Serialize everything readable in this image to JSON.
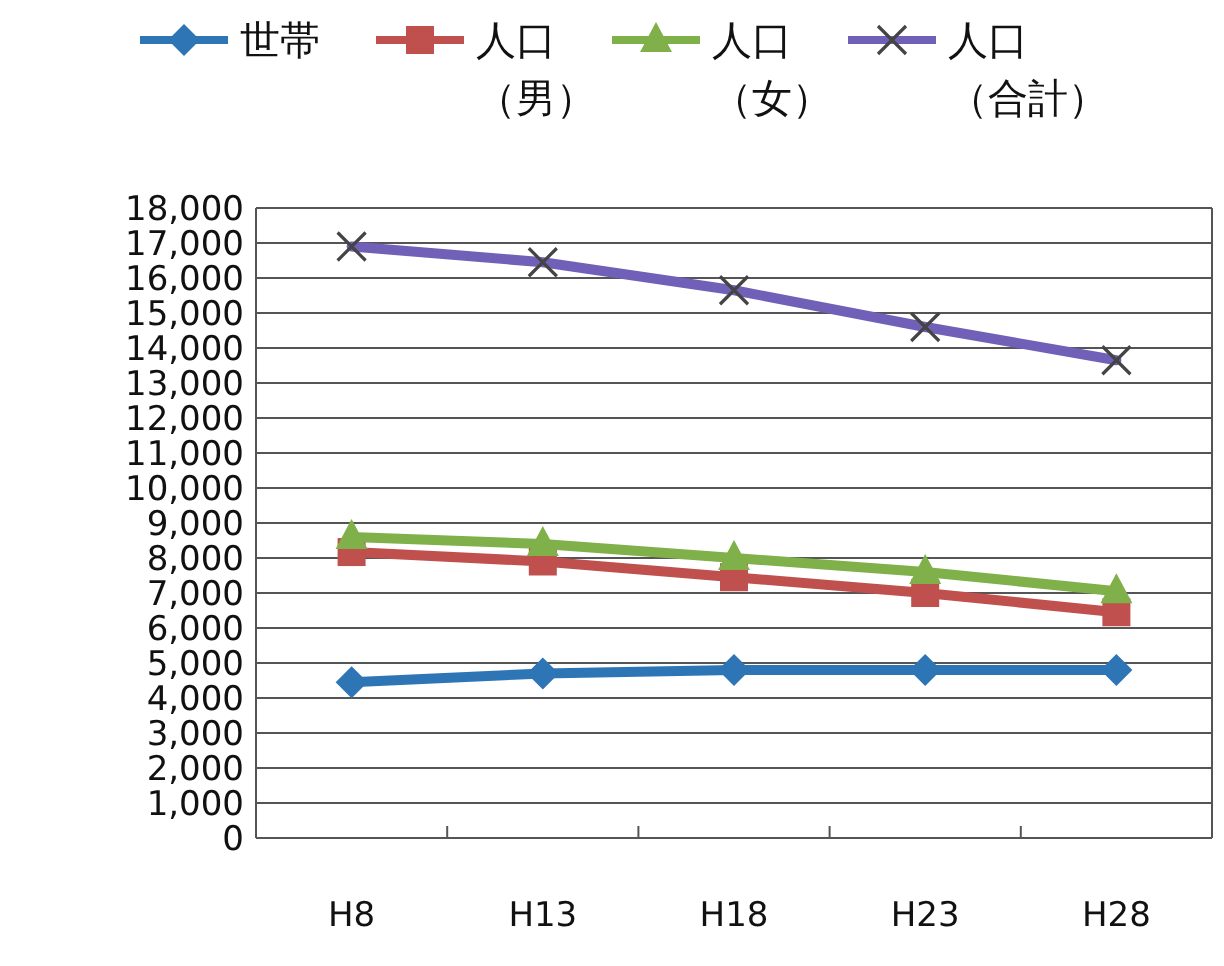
{
  "chart_data": {
    "type": "line",
    "categories": [
      "H8",
      "H13",
      "H18",
      "H23",
      "H28"
    ],
    "series": [
      {
        "name": "世帯",
        "color": "#2e75b6",
        "marker": "diamond",
        "values": [
          4450,
          4700,
          4800,
          4800,
          4800
        ]
      },
      {
        "name": "人口（男）",
        "color": "#c0504d",
        "marker": "square",
        "values": [
          8170,
          7900,
          7450,
          7000,
          6450
        ]
      },
      {
        "name": "人口（女）",
        "color": "#7fb04a",
        "marker": "triangle",
        "values": [
          8600,
          8400,
          8000,
          7600,
          7050
        ]
      },
      {
        "name": "人口（合計）",
        "color": "#7060b8",
        "marker": "cross",
        "values": [
          16900,
          16450,
          15650,
          14600,
          13650
        ]
      }
    ],
    "ylim": [
      0,
      18000
    ],
    "yticks": [
      {
        "value": 0,
        "label": "0"
      },
      {
        "value": 1000,
        "label": "1,000"
      },
      {
        "value": 2000,
        "label": "2,000"
      },
      {
        "value": 3000,
        "label": "3,000"
      },
      {
        "value": 4000,
        "label": "4,000"
      },
      {
        "value": 5000,
        "label": "5,000"
      },
      {
        "value": 6000,
        "label": "6,000"
      },
      {
        "value": 7000,
        "label": "7,000"
      },
      {
        "value": 8000,
        "label": "8,000"
      },
      {
        "value": 9000,
        "label": "9,000"
      },
      {
        "value": 10000,
        "label": "10,000"
      },
      {
        "value": 11000,
        "label": "11,000"
      },
      {
        "value": 12000,
        "label": "12,000"
      },
      {
        "value": 13000,
        "label": "13,000"
      },
      {
        "value": 14000,
        "label": "14,000"
      },
      {
        "value": 15000,
        "label": "15,000"
      },
      {
        "value": 16000,
        "label": "16,000"
      },
      {
        "value": 17000,
        "label": "17,000"
      },
      {
        "value": 18000,
        "label": "18,000"
      }
    ],
    "grid": "y",
    "legend": "top"
  }
}
